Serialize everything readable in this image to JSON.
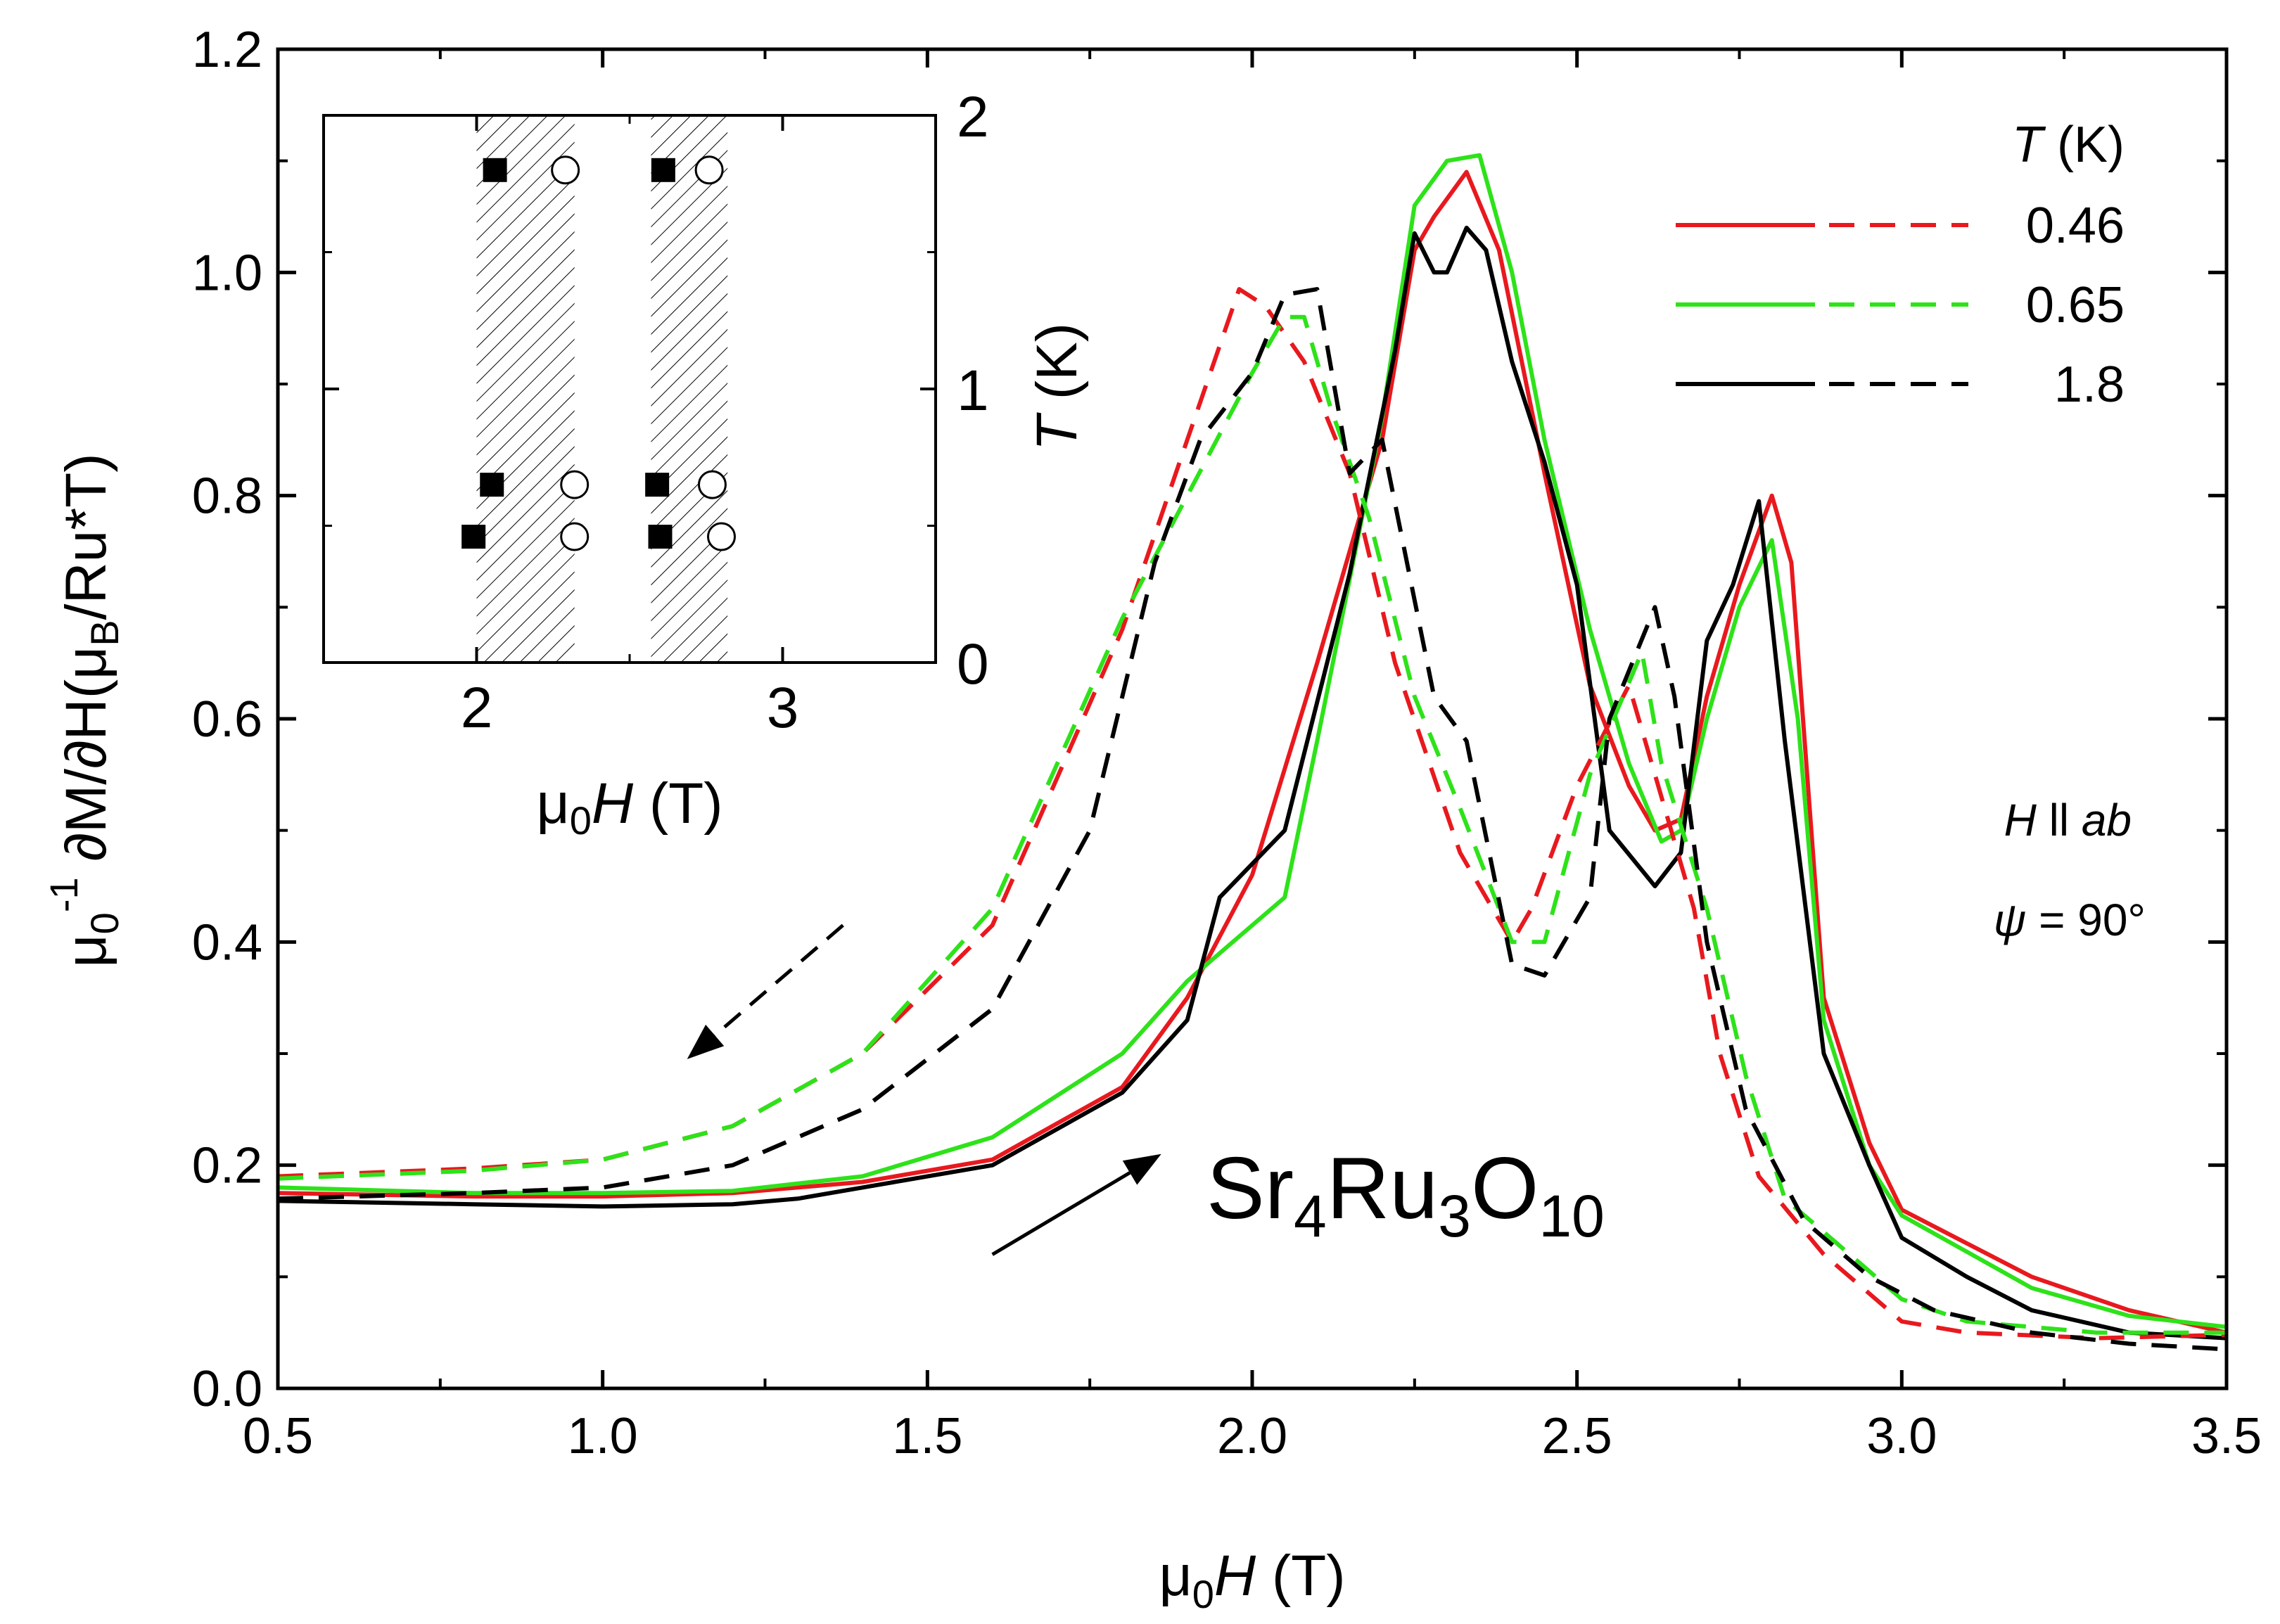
{
  "chart_data": [
    {
      "type": "line",
      "xlabel": {
        "pre": "μ",
        "sub": "0",
        "italic": "H",
        "post": " (T)"
      },
      "ylabel": {
        "a": "μ",
        "a_sub": "0",
        "a_sup": "-1",
        "b": " ∂M/∂H(μ",
        "b_sub": "B",
        "c": "/Ru*T)"
      },
      "xlim": [
        0.5,
        3.5
      ],
      "ylim": [
        0.0,
        1.2
      ],
      "xticks": [
        "0.5",
        "1.0",
        "1.5",
        "2.0",
        "2.5",
        "3.0",
        "3.5"
      ],
      "yticks": [
        "0.0",
        "0.2",
        "0.4",
        "0.6",
        "0.8",
        "1.0",
        "1.2"
      ],
      "legend": {
        "title_italic": "T",
        "title_rest": " (K)",
        "entries": [
          {
            "label": "0.46",
            "color": "#e8191e"
          },
          {
            "label": "0.65",
            "color": "#2ee21a"
          },
          {
            "label": "1.8",
            "color": "#000000"
          }
        ]
      },
      "annotation_field": {
        "italic_a": "H",
        "mid": " ll ",
        "italic_b": "ab"
      },
      "annotation_angle": {
        "italic": "ψ",
        "rest": " = 90°"
      },
      "compound": {
        "a": "Sr",
        "a_sub": "4",
        "b": "Ru",
        "b_sub": "3",
        "c": "O",
        "c_sub": "10"
      },
      "series": [
        {
          "name": "0.46 K up-sweep",
          "color": "#e8191e",
          "dash": false,
          "points": [
            [
              0.5,
              0.175
            ],
            [
              0.8,
              0.172
            ],
            [
              1.0,
              0.172
            ],
            [
              1.2,
              0.175
            ],
            [
              1.4,
              0.185
            ],
            [
              1.6,
              0.205
            ],
            [
              1.8,
              0.27
            ],
            [
              1.9,
              0.35
            ],
            [
              2.0,
              0.46
            ],
            [
              2.1,
              0.65
            ],
            [
              2.2,
              0.85
            ],
            [
              2.25,
              1.02
            ],
            [
              2.28,
              1.05
            ],
            [
              2.33,
              1.09
            ],
            [
              2.38,
              1.02
            ],
            [
              2.45,
              0.82
            ],
            [
              2.52,
              0.63
            ],
            [
              2.58,
              0.54
            ],
            [
              2.62,
              0.5
            ],
            [
              2.66,
              0.51
            ],
            [
              2.7,
              0.62
            ],
            [
              2.75,
              0.72
            ],
            [
              2.8,
              0.8
            ],
            [
              2.83,
              0.74
            ],
            [
              2.88,
              0.35
            ],
            [
              2.95,
              0.22
            ],
            [
              3.0,
              0.16
            ],
            [
              3.2,
              0.1
            ],
            [
              3.35,
              0.07
            ],
            [
              3.5,
              0.05
            ]
          ]
        },
        {
          "name": "0.65 K up-sweep",
          "color": "#2ee21a",
          "dash": false,
          "points": [
            [
              0.5,
              0.18
            ],
            [
              0.8,
              0.175
            ],
            [
              1.0,
              0.175
            ],
            [
              1.2,
              0.177
            ],
            [
              1.4,
              0.19
            ],
            [
              1.6,
              0.225
            ],
            [
              1.8,
              0.3
            ],
            [
              1.9,
              0.365
            ],
            [
              2.05,
              0.44
            ],
            [
              2.1,
              0.58
            ],
            [
              2.2,
              0.87
            ],
            [
              2.25,
              1.06
            ],
            [
              2.3,
              1.1
            ],
            [
              2.35,
              1.105
            ],
            [
              2.4,
              1.0
            ],
            [
              2.45,
              0.85
            ],
            [
              2.52,
              0.68
            ],
            [
              2.58,
              0.56
            ],
            [
              2.63,
              0.49
            ],
            [
              2.66,
              0.5
            ],
            [
              2.7,
              0.6
            ],
            [
              2.75,
              0.7
            ],
            [
              2.8,
              0.76
            ],
            [
              2.84,
              0.6
            ],
            [
              2.88,
              0.33
            ],
            [
              2.95,
              0.2
            ],
            [
              3.0,
              0.155
            ],
            [
              3.2,
              0.09
            ],
            [
              3.35,
              0.065
            ],
            [
              3.5,
              0.055
            ]
          ]
        },
        {
          "name": "1.8 K up-sweep",
          "color": "#000000",
          "dash": false,
          "points": [
            [
              0.5,
              0.168
            ],
            [
              0.8,
              0.165
            ],
            [
              1.0,
              0.163
            ],
            [
              1.2,
              0.165
            ],
            [
              1.3,
              0.17
            ],
            [
              1.4,
              0.18
            ],
            [
              1.6,
              0.2
            ],
            [
              1.8,
              0.265
            ],
            [
              1.9,
              0.33
            ],
            [
              1.95,
              0.44
            ],
            [
              2.05,
              0.5
            ],
            [
              2.15,
              0.73
            ],
            [
              2.22,
              0.93
            ],
            [
              2.25,
              1.035
            ],
            [
              2.28,
              1.0
            ],
            [
              2.3,
              1.0
            ],
            [
              2.33,
              1.04
            ],
            [
              2.36,
              1.02
            ],
            [
              2.4,
              0.92
            ],
            [
              2.45,
              0.83
            ],
            [
              2.5,
              0.72
            ],
            [
              2.55,
              0.5
            ],
            [
              2.62,
              0.45
            ],
            [
              2.66,
              0.48
            ],
            [
              2.7,
              0.67
            ],
            [
              2.74,
              0.72
            ],
            [
              2.78,
              0.795
            ],
            [
              2.82,
              0.58
            ],
            [
              2.88,
              0.3
            ],
            [
              2.95,
              0.2
            ],
            [
              3.0,
              0.135
            ],
            [
              3.1,
              0.1
            ],
            [
              3.2,
              0.07
            ],
            [
              3.35,
              0.05
            ],
            [
              3.5,
              0.045
            ]
          ]
        },
        {
          "name": "0.46 K down-sweep",
          "color": "#e8191e",
          "dash": true,
          "points": [
            [
              0.5,
              0.19
            ],
            [
              0.8,
              0.197
            ],
            [
              1.0,
              0.205
            ],
            [
              1.2,
              0.235
            ],
            [
              1.4,
              0.3
            ],
            [
              1.6,
              0.415
            ],
            [
              1.8,
              0.68
            ],
            [
              1.9,
              0.85
            ],
            [
              1.98,
              0.985
            ],
            [
              2.02,
              0.97
            ],
            [
              2.08,
              0.92
            ],
            [
              2.15,
              0.82
            ],
            [
              2.22,
              0.65
            ],
            [
              2.32,
              0.48
            ],
            [
              2.4,
              0.4
            ],
            [
              2.43,
              0.43
            ],
            [
              2.5,
              0.54
            ],
            [
              2.58,
              0.63
            ],
            [
              2.62,
              0.55
            ],
            [
              2.68,
              0.43
            ],
            [
              2.72,
              0.3
            ],
            [
              2.78,
              0.19
            ],
            [
              2.88,
              0.12
            ],
            [
              3.0,
              0.06
            ],
            [
              3.1,
              0.05
            ],
            [
              3.3,
              0.045
            ],
            [
              3.5,
              0.048
            ]
          ]
        },
        {
          "name": "0.65 K down-sweep",
          "color": "#2ee21a",
          "dash": true,
          "points": [
            [
              0.5,
              0.188
            ],
            [
              0.8,
              0.195
            ],
            [
              1.0,
              0.205
            ],
            [
              1.2,
              0.235
            ],
            [
              1.4,
              0.3
            ],
            [
              1.6,
              0.43
            ],
            [
              1.8,
              0.69
            ],
            [
              1.9,
              0.8
            ],
            [
              2.0,
              0.91
            ],
            [
              2.05,
              0.96
            ],
            [
              2.08,
              0.96
            ],
            [
              2.12,
              0.88
            ],
            [
              2.18,
              0.78
            ],
            [
              2.25,
              0.62
            ],
            [
              2.32,
              0.52
            ],
            [
              2.4,
              0.4
            ],
            [
              2.45,
              0.4
            ],
            [
              2.52,
              0.55
            ],
            [
              2.6,
              0.66
            ],
            [
              2.63,
              0.56
            ],
            [
              2.7,
              0.43
            ],
            [
              2.76,
              0.28
            ],
            [
              2.82,
              0.17
            ],
            [
              2.9,
              0.13
            ],
            [
              3.0,
              0.08
            ],
            [
              3.1,
              0.06
            ],
            [
              3.3,
              0.05
            ],
            [
              3.5,
              0.05
            ]
          ]
        },
        {
          "name": "1.8 K down-sweep",
          "color": "#000000",
          "dash": true,
          "points": [
            [
              0.5,
              0.17
            ],
            [
              0.8,
              0.175
            ],
            [
              1.0,
              0.18
            ],
            [
              1.2,
              0.2
            ],
            [
              1.4,
              0.25
            ],
            [
              1.6,
              0.34
            ],
            [
              1.75,
              0.5
            ],
            [
              1.85,
              0.74
            ],
            [
              1.92,
              0.85
            ],
            [
              2.0,
              0.91
            ],
            [
              2.05,
              0.98
            ],
            [
              2.1,
              0.985
            ],
            [
              2.15,
              0.82
            ],
            [
              2.2,
              0.85
            ],
            [
              2.28,
              0.62
            ],
            [
              2.33,
              0.58
            ],
            [
              2.4,
              0.38
            ],
            [
              2.45,
              0.37
            ],
            [
              2.52,
              0.44
            ],
            [
              2.55,
              0.6
            ],
            [
              2.62,
              0.7
            ],
            [
              2.65,
              0.62
            ],
            [
              2.7,
              0.4
            ],
            [
              2.76,
              0.25
            ],
            [
              2.85,
              0.15
            ],
            [
              2.95,
              0.1
            ],
            [
              3.05,
              0.07
            ],
            [
              3.2,
              0.05
            ],
            [
              3.35,
              0.04
            ],
            [
              3.5,
              0.035
            ]
          ]
        }
      ],
      "arrows": [
        {
          "name": "down-sweep-arrow",
          "style": "dashed",
          "from": [
            1.37,
            0.415
          ],
          "to": [
            1.13,
            0.295
          ]
        },
        {
          "name": "up-sweep-arrow",
          "style": "solid",
          "from": [
            1.6,
            0.12
          ],
          "to": [
            1.86,
            0.21
          ]
        }
      ]
    },
    {
      "type": "scatter",
      "xlabel": {
        "pre": "μ",
        "sub": "0",
        "italic": "H",
        "post": " (T)"
      },
      "ylabel": {
        "italic": "T",
        "rest": " (K)"
      },
      "xlim": [
        1.5,
        3.5
      ],
      "ylim": [
        0.0,
        2.0
      ],
      "xticks": [
        "2",
        "3"
      ],
      "yticks": [
        "0",
        "1",
        "2"
      ],
      "hatched_bands": [
        [
          2.0,
          2.32
        ],
        [
          2.57,
          2.82
        ]
      ],
      "filled_squares": [
        [
          2.06,
          1.8
        ],
        [
          2.05,
          0.65
        ],
        [
          1.99,
          0.46
        ],
        [
          2.61,
          1.8
        ],
        [
          2.59,
          0.65
        ],
        [
          2.6,
          0.46
        ]
      ],
      "open_circles": [
        [
          2.29,
          1.8
        ],
        [
          2.32,
          0.65
        ],
        [
          2.32,
          0.46
        ],
        [
          2.76,
          1.8
        ],
        [
          2.77,
          0.65
        ],
        [
          2.8,
          0.46
        ]
      ]
    }
  ]
}
